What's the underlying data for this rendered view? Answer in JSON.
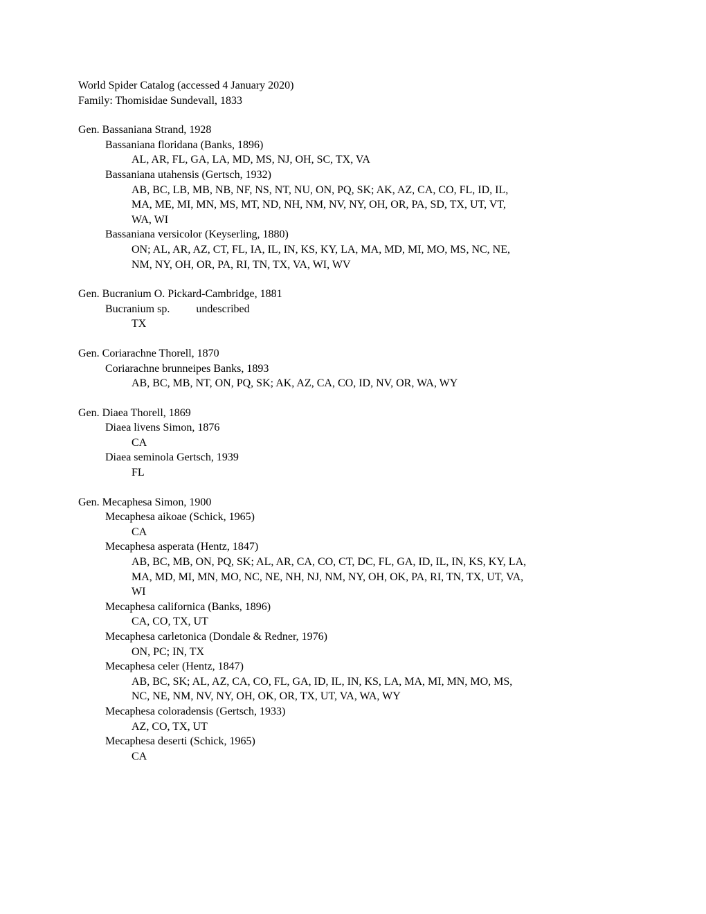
{
  "header": {
    "line1": "World Spider Catalog (accessed 4 January 2020)",
    "line2": "Family: Thomisidae Sundevall, 1833"
  },
  "genera": [
    {
      "name": "Gen. Bassaniana Strand, 1928",
      "species": [
        {
          "name": "Bassaniana floridana (Banks, 1896)",
          "localities": [
            "AL, AR, FL, GA, LA, MD, MS, NJ, OH, SC, TX, VA"
          ]
        },
        {
          "name": "Bassaniana utahensis (Gertsch, 1932)",
          "localities": [
            "AB, BC, LB, MB, NB, NF, NS, NT, NU, ON, PQ, SK; AK, AZ, CA, CO, FL, ID, IL,",
            "MA, ME, MI, MN, MS, MT, ND, NH, NM, NV, NY, OH, OR, PA, SD, TX, UT, VT,",
            "WA, WI"
          ]
        },
        {
          "name": "Bassaniana versicolor (Keyserling, 1880)",
          "localities": [
            "ON; AL, AR, AZ, CT, FL, IA, IL, IN, KS, KY, LA, MA, MD, MI, MO, MS, NC, NE,",
            "NM, NY, OH, OR, PA, RI, TN, TX, VA, WI, WV"
          ]
        }
      ]
    },
    {
      "name": "Gen. Bucranium O. Pickard-Cambridge, 1881",
      "species": [
        {
          "name": "Bucranium sp.",
          "note": "undescribed",
          "localities": [
            "TX"
          ]
        }
      ]
    },
    {
      "name": "Gen. Coriarachne Thorell, 1870",
      "species": [
        {
          "name": "Coriarachne brunneipes Banks, 1893",
          "localities": [
            "AB, BC, MB, NT, ON, PQ, SK; AK, AZ, CA, CO, ID, NV, OR, WA, WY"
          ]
        }
      ]
    },
    {
      "name": "Gen. Diaea Thorell, 1869",
      "species": [
        {
          "name": "Diaea livens Simon, 1876",
          "localities": [
            "CA"
          ]
        },
        {
          "name": "Diaea seminola Gertsch, 1939",
          "localities": [
            "FL"
          ]
        }
      ]
    },
    {
      "name": "Gen. Mecaphesa Simon, 1900",
      "species": [
        {
          "name": "Mecaphesa aikoae (Schick, 1965)",
          "localities": [
            "CA"
          ]
        },
        {
          "name": "Mecaphesa asperata (Hentz, 1847)",
          "localities": [
            "AB, BC, MB, ON, PQ, SK; AL, AR, CA, CO, CT, DC, FL, GA, ID, IL, IN, KS, KY, LA,",
            "MA, MD, MI, MN, MO, NC, NE, NH, NJ, NM, NY, OH, OK, PA, RI, TN, TX, UT, VA,",
            "WI"
          ]
        },
        {
          "name": "Mecaphesa californica (Banks, 1896)",
          "localities": [
            "CA, CO, TX, UT"
          ]
        },
        {
          "name": "Mecaphesa carletonica (Dondale & Redner, 1976)",
          "localities": [
            "ON, PC; IN, TX"
          ]
        },
        {
          "name": "Mecaphesa celer (Hentz, 1847)",
          "localities": [
            "AB, BC, SK; AL, AZ, CA, CO, FL, GA, ID, IL, IN, KS, LA, MA, MI, MN, MO, MS,",
            "NC, NE, NM, NV, NY, OH, OK, OR, TX, UT, VA, WA, WY"
          ]
        },
        {
          "name": "Mecaphesa coloradensis (Gertsch, 1933)",
          "localities": [
            "AZ, CO, TX, UT"
          ]
        },
        {
          "name": "Mecaphesa deserti (Schick, 1965)",
          "localities": [
            "CA"
          ]
        }
      ]
    }
  ]
}
